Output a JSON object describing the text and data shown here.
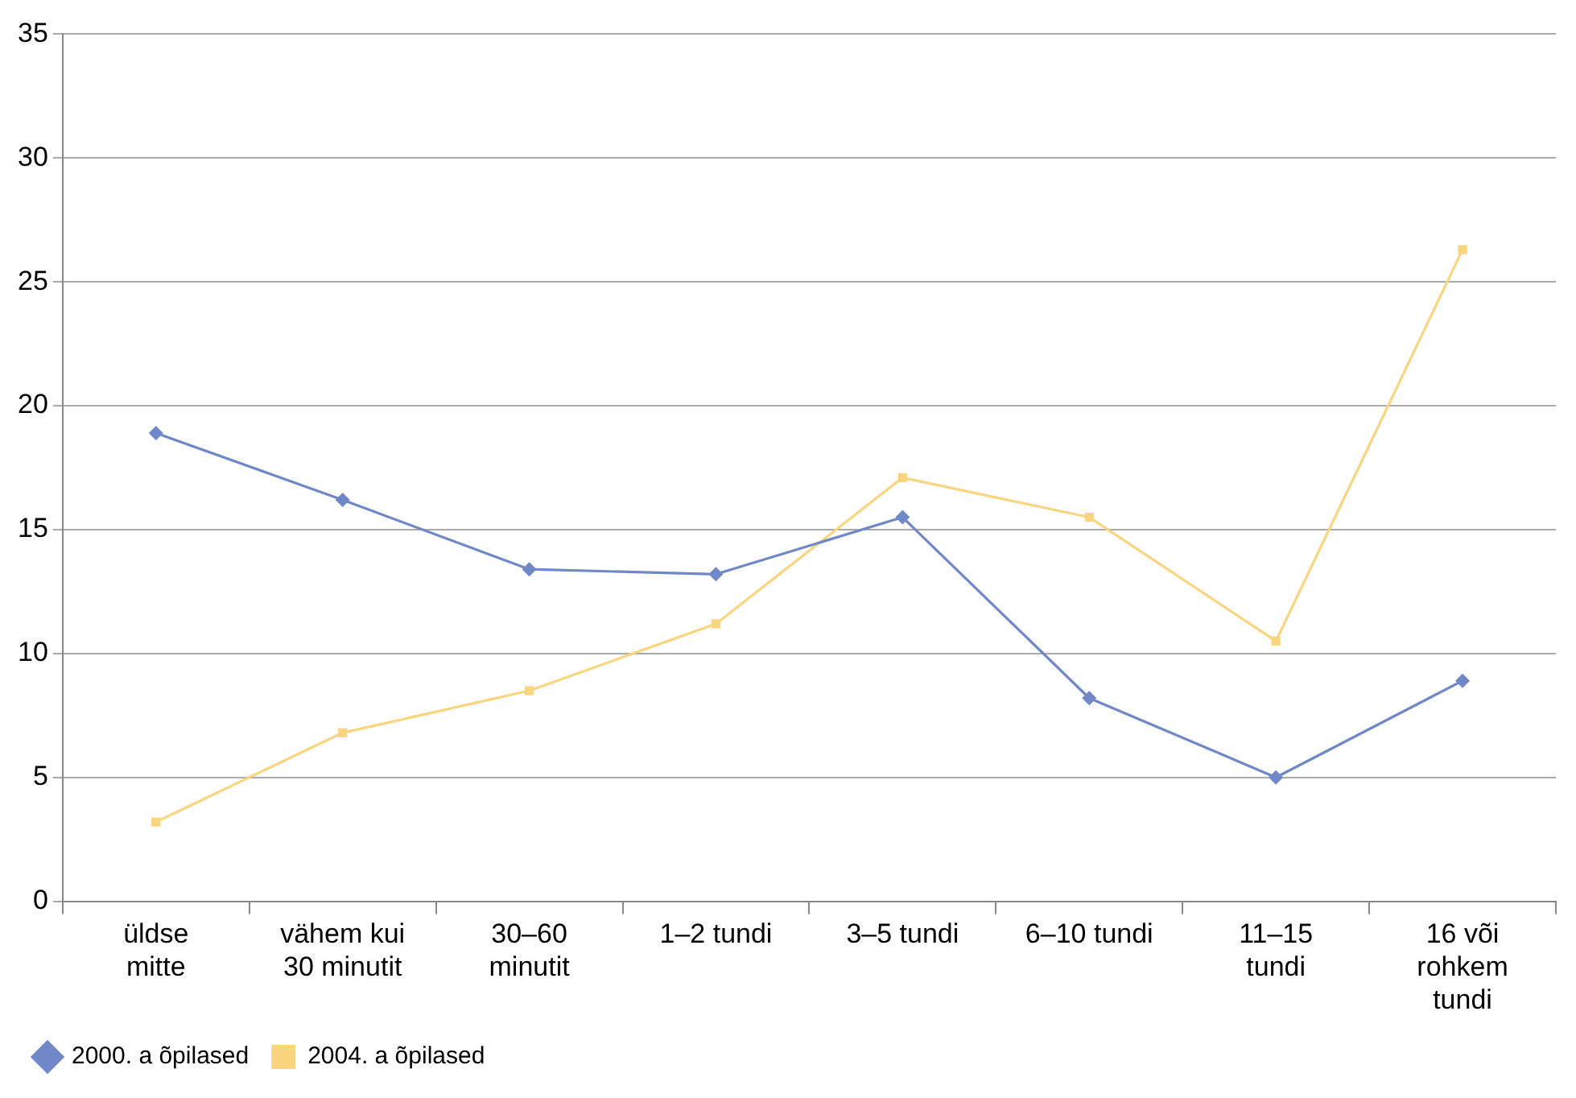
{
  "chart_data": {
    "type": "line",
    "categories": [
      "üldse mitte",
      "vähem kui 30 minutit",
      "30–60 minutit",
      "1–2 tundi",
      "3–5 tundi",
      "6–10 tundi",
      "11–15 tundi",
      "16 või rohkem tundi"
    ],
    "series": [
      {
        "name": "2000. a õpilased",
        "color": "#7088c8",
        "marker": "diamond",
        "values": [
          18.9,
          16.2,
          13.4,
          13.2,
          15.5,
          8.2,
          5.0,
          8.9
        ]
      },
      {
        "name": "2004. a õpilased",
        "color": "#f9d57f",
        "marker": "square",
        "values": [
          3.2,
          6.8,
          8.5,
          11.2,
          17.1,
          15.5,
          10.5,
          26.3
        ]
      }
    ],
    "ylim": [
      0,
      35
    ],
    "yticks": [
      0,
      5,
      10,
      15,
      20,
      25,
      30,
      35
    ],
    "grid": "y",
    "legend": "bottom left",
    "line_style": "solid"
  }
}
